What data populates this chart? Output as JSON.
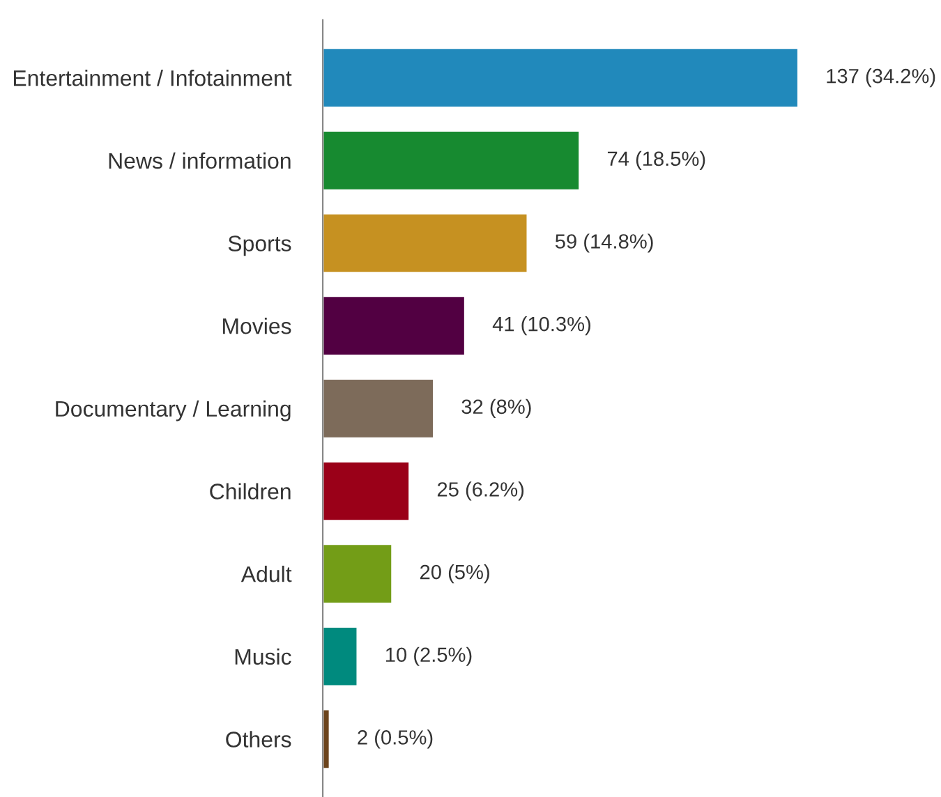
{
  "chart_data": {
    "type": "bar",
    "orientation": "horizontal",
    "categories": [
      "Entertainment / Infotainment",
      "News / information",
      "Sports",
      "Movies",
      "Documentary / Learning",
      "Children",
      "Adult",
      "Music",
      "Others"
    ],
    "values": [
      137,
      74,
      59,
      41,
      32,
      25,
      20,
      10,
      2
    ],
    "colors": [
      "#2189bb",
      "#178a30",
      "#c69121",
      "#520042",
      "#7d6b5a",
      "#9a0018",
      "#739d17",
      "#008a7e",
      "#6b431b"
    ],
    "value_labels": [
      "137 (34.2%)",
      "74 (18.5%)",
      "59 (14.8%)",
      "41 (10.3%)",
      "32 (8%)",
      "25 (6.2%)",
      "20 (5%)",
      "10 (2.5%)",
      "2 (0.5%)"
    ]
  }
}
